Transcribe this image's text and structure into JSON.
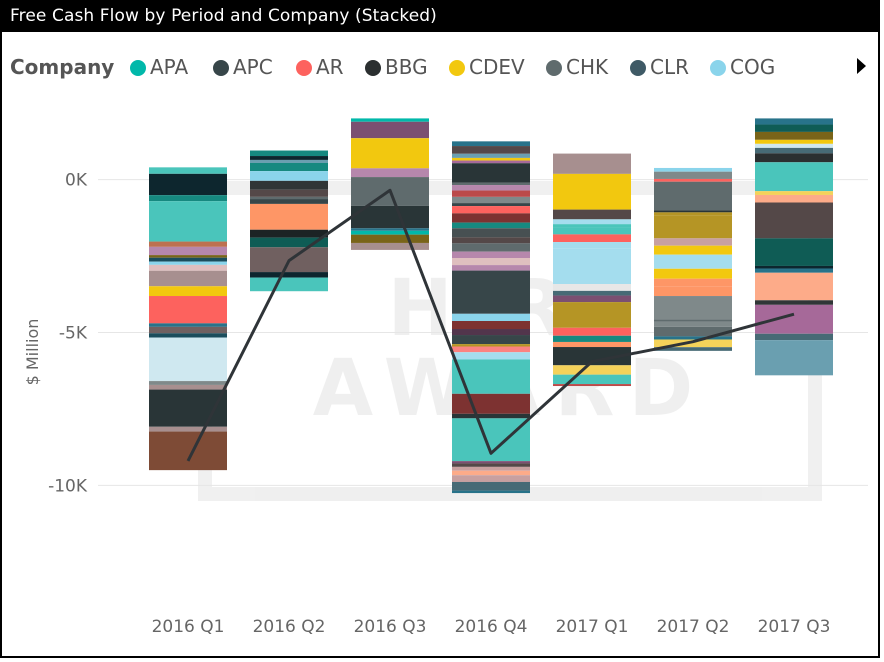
{
  "title": "Free Cash Flow by Period and Company (Stacked)",
  "legend": {
    "title": "Company",
    "items": [
      {
        "label": "APA",
        "color": "#01B8AA"
      },
      {
        "label": "APC",
        "color": "#374649"
      },
      {
        "label": "AR",
        "color": "#FD625E"
      },
      {
        "label": "BBG",
        "color": "#2B2F30"
      },
      {
        "label": "CDEV",
        "color": "#F2C80F"
      },
      {
        "label": "CHK",
        "color": "#5F6B6D"
      },
      {
        "label": "CLR",
        "color": "#3F5A66"
      },
      {
        "label": "COG",
        "color": "#8AD4EB"
      }
    ]
  },
  "chart_data": {
    "type": "bar",
    "stacked": true,
    "categories": [
      "2016 Q1",
      "2016 Q2",
      "2016 Q3",
      "2016 Q4",
      "2017 Q1",
      "2017 Q2",
      "2017 Q3"
    ],
    "ylabel": "$ Million",
    "yticks": [
      {
        "value": 0,
        "label": "0K"
      },
      {
        "value": -5000,
        "label": "-5K"
      },
      {
        "value": -10000,
        "label": "-10K"
      }
    ],
    "ylim": [
      -12700,
      2700
    ],
    "bar_extents": [
      {
        "top": 400,
        "bottom": -9500
      },
      {
        "top": 950,
        "bottom": -3650
      },
      {
        "top": 2000,
        "bottom": -2300
      },
      {
        "top": 1250,
        "bottom": -10250
      },
      {
        "top": 850,
        "bottom": -6750
      },
      {
        "top": 380,
        "bottom": -5600
      },
      {
        "top": 2000,
        "bottom": -6400
      }
    ],
    "total_line": [
      -9200,
      -2650,
      -350,
      -8950,
      -5950,
      -5300,
      -4400
    ],
    "grid": true
  }
}
